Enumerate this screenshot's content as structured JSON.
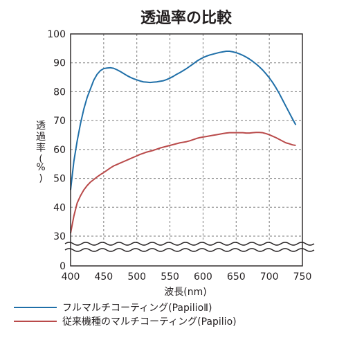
{
  "chart_data": {
    "type": "line",
    "title": "透過率の比較",
    "xlabel": "波長(nm)",
    "ylabel": "透過率(%)",
    "xlim": [
      400,
      750
    ],
    "ylim": [
      0,
      100
    ],
    "axis_break": [
      0,
      25
    ],
    "x_ticks": [
      "400",
      "450",
      "500",
      "550",
      "600",
      "650",
      "700",
      "750"
    ],
    "y_ticks": [
      "0",
      "30",
      "40",
      "50",
      "60",
      "70",
      "80",
      "90",
      "100"
    ],
    "grid": true,
    "legend_position": "bottom",
    "series": [
      {
        "name": "フルマルチコーティング(PapilioⅡ)",
        "color": "#1f6fa8",
        "points": [
          [
            400,
            46
          ],
          [
            405,
            56
          ],
          [
            410,
            63
          ],
          [
            415,
            69
          ],
          [
            420,
            74
          ],
          [
            425,
            78
          ],
          [
            430,
            81
          ],
          [
            435,
            84
          ],
          [
            440,
            86
          ],
          [
            445,
            87.3
          ],
          [
            450,
            88
          ],
          [
            455,
            88.2
          ],
          [
            460,
            88.3
          ],
          [
            465,
            88.1
          ],
          [
            470,
            87.6
          ],
          [
            475,
            87
          ],
          [
            480,
            86.3
          ],
          [
            485,
            85.6
          ],
          [
            490,
            85
          ],
          [
            495,
            84.5
          ],
          [
            500,
            84.1
          ],
          [
            505,
            83.7
          ],
          [
            510,
            83.4
          ],
          [
            515,
            83.3
          ],
          [
            520,
            83.2
          ],
          [
            525,
            83.3
          ],
          [
            530,
            83.4
          ],
          [
            535,
            83.6
          ],
          [
            540,
            83.8
          ],
          [
            545,
            84.2
          ],
          [
            550,
            84.7
          ],
          [
            555,
            85.3
          ],
          [
            560,
            86
          ],
          [
            565,
            86.6
          ],
          [
            570,
            87.3
          ],
          [
            575,
            88
          ],
          [
            580,
            88.8
          ],
          [
            585,
            89.6
          ],
          [
            590,
            90.5
          ],
          [
            595,
            91.2
          ],
          [
            600,
            91.8
          ],
          [
            605,
            92.3
          ],
          [
            610,
            92.7
          ],
          [
            615,
            93
          ],
          [
            620,
            93.3
          ],
          [
            625,
            93.6
          ],
          [
            630,
            93.8
          ],
          [
            635,
            94
          ],
          [
            640,
            94
          ],
          [
            645,
            93.8
          ],
          [
            650,
            93.5
          ],
          [
            655,
            93.1
          ],
          [
            660,
            92.6
          ],
          [
            665,
            92
          ],
          [
            670,
            91.3
          ],
          [
            675,
            90.5
          ],
          [
            680,
            89.6
          ],
          [
            685,
            88.6
          ],
          [
            690,
            87.5
          ],
          [
            695,
            86.2
          ],
          [
            700,
            84.8
          ],
          [
            705,
            83.2
          ],
          [
            710,
            81.4
          ],
          [
            715,
            79.4
          ],
          [
            720,
            77.2
          ],
          [
            725,
            75
          ],
          [
            730,
            72.8
          ],
          [
            735,
            70.6
          ],
          [
            740,
            68.5
          ]
        ]
      },
      {
        "name": "従来機種のマルチコーティング(Papilio)",
        "color": "#b94a4a",
        "points": [
          [
            400,
            31
          ],
          [
            405,
            37
          ],
          [
            410,
            41.5
          ],
          [
            415,
            44
          ],
          [
            420,
            46
          ],
          [
            425,
            47.5
          ],
          [
            430,
            48.7
          ],
          [
            435,
            49.6
          ],
          [
            440,
            50.5
          ],
          [
            445,
            51.3
          ],
          [
            450,
            52
          ],
          [
            455,
            52.8
          ],
          [
            460,
            53.6
          ],
          [
            465,
            54.3
          ],
          [
            470,
            54.8
          ],
          [
            475,
            55.3
          ],
          [
            480,
            55.8
          ],
          [
            485,
            56.3
          ],
          [
            490,
            56.8
          ],
          [
            495,
            57.3
          ],
          [
            500,
            57.8
          ],
          [
            505,
            58.3
          ],
          [
            510,
            58.7
          ],
          [
            515,
            59.1
          ],
          [
            520,
            59.4
          ],
          [
            525,
            59.7
          ],
          [
            530,
            60.1
          ],
          [
            535,
            60.5
          ],
          [
            540,
            60.8
          ],
          [
            545,
            61.1
          ],
          [
            550,
            61.4
          ],
          [
            555,
            61.7
          ],
          [
            560,
            62
          ],
          [
            565,
            62.3
          ],
          [
            570,
            62.5
          ],
          [
            575,
            62.7
          ],
          [
            580,
            63
          ],
          [
            585,
            63.4
          ],
          [
            590,
            63.8
          ],
          [
            595,
            64.1
          ],
          [
            600,
            64.3
          ],
          [
            605,
            64.5
          ],
          [
            610,
            64.7
          ],
          [
            615,
            64.9
          ],
          [
            620,
            65.1
          ],
          [
            625,
            65.3
          ],
          [
            630,
            65.5
          ],
          [
            635,
            65.7
          ],
          [
            640,
            65.8
          ],
          [
            645,
            65.8
          ],
          [
            650,
            65.8
          ],
          [
            655,
            65.8
          ],
          [
            660,
            65.8
          ],
          [
            665,
            65.7
          ],
          [
            670,
            65.7
          ],
          [
            675,
            65.8
          ],
          [
            680,
            65.9
          ],
          [
            685,
            65.9
          ],
          [
            690,
            65.8
          ],
          [
            695,
            65.5
          ],
          [
            700,
            65.1
          ],
          [
            705,
            64.6
          ],
          [
            710,
            64.1
          ],
          [
            715,
            63.5
          ],
          [
            720,
            62.9
          ],
          [
            725,
            62.3
          ],
          [
            730,
            62
          ],
          [
            735,
            61.6
          ],
          [
            740,
            61.4
          ]
        ]
      }
    ]
  }
}
